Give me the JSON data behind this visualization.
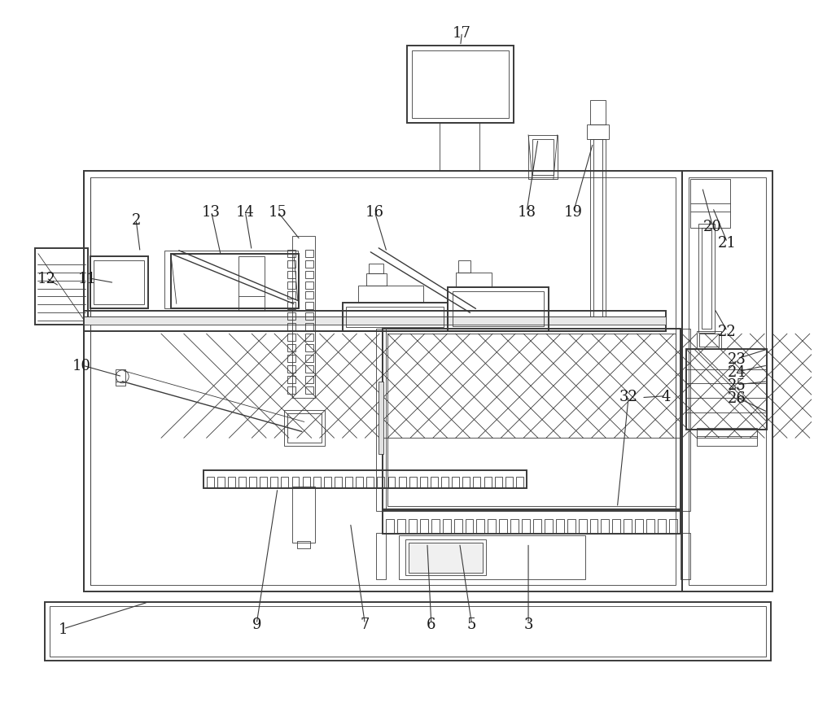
{
  "bg_color": "#ffffff",
  "line_color": "#3a3a3a",
  "label_color": "#1a1a1a",
  "fig_width": 10.0,
  "fig_height": 8.7,
  "lw_main": 1.4,
  "lw_med": 1.0,
  "lw_thin": 0.6
}
